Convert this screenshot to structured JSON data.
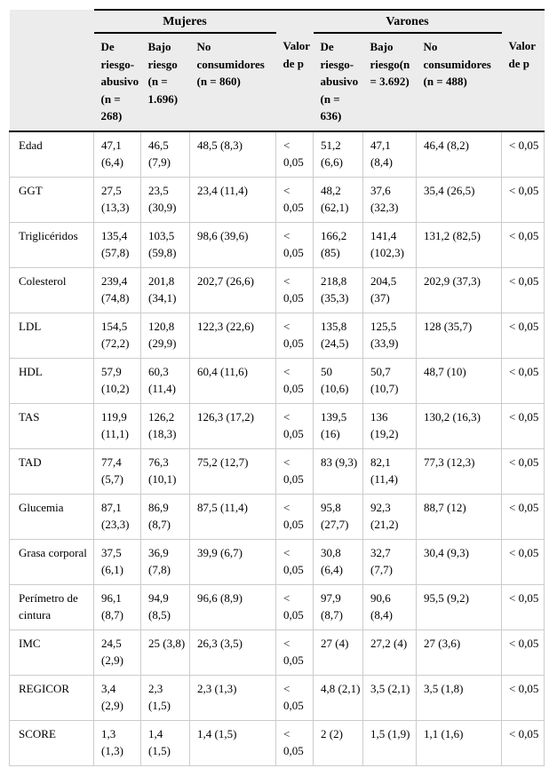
{
  "colors": {
    "header_bg": "#ececec",
    "grid_line": "#cccccc",
    "rule_line": "#000000",
    "text": "#000000"
  },
  "chart_data": {
    "type": "table",
    "group_headers": [
      {
        "label": "Mujeres",
        "span": 3
      },
      {
        "label": "Varones",
        "span": 3
      }
    ],
    "columns": [
      "",
      "De riesgo-abusivo (n = 268)",
      "Bajo riesgo (n = 1.696)",
      "No consumidores (n = 860)",
      "Valor de p",
      "De riesgo-abusivo (n = 636)",
      "Bajo riesgo(n = 3.692)",
      "No consumidores (n = 488)",
      "Valor de p"
    ],
    "rows": [
      {
        "label": "Edad",
        "cells": [
          "47,1 (6,4)",
          "46,5 (7,9)",
          "48,5 (8,3)",
          "< 0,05",
          "51,2 (6,6)",
          "47,1 (8,4)",
          "46,4 (8,2)",
          "< 0,05"
        ]
      },
      {
        "label": "GGT",
        "cells": [
          "27,5 (13,3)",
          "23,5 (30,9)",
          "23,4 (11,4)",
          "< 0,05",
          "48,2 (62,1)",
          "37,6 (32,3)",
          "35,4 (26,5)",
          "< 0,05"
        ]
      },
      {
        "label": "Triglicéridos",
        "cells": [
          "135,4 (57,8)",
          "103,5 (59,8)",
          "98,6 (39,6)",
          "< 0,05",
          "166,2 (85)",
          "141,4 (102,3)",
          "131,2 (82,5)",
          "< 0,05"
        ]
      },
      {
        "label": "Colesterol",
        "cells": [
          "239,4 (74,8)",
          "201,8 (34,1)",
          "202,7 (26,6)",
          "< 0,05",
          "218,8 (35,3)",
          "204,5 (37)",
          "202,9 (37,3)",
          "< 0,05"
        ]
      },
      {
        "label": "LDL",
        "cells": [
          "154,5 (72,2)",
          "120,8 (29,9)",
          "122,3 (22,6)",
          "< 0,05",
          "135,8 (24,5)",
          "125,5 (33,9)",
          "128 (35,7)",
          "< 0,05"
        ]
      },
      {
        "label": "HDL",
        "cells": [
          "57,9 (10,2)",
          "60,3 (11,4)",
          "60,4 (11,6)",
          "< 0,05",
          "50 (10,6)",
          "50,7 (10,7)",
          "48,7 (10)",
          "< 0,05"
        ]
      },
      {
        "label": "TAS",
        "cells": [
          "119,9 (11,1)",
          "126,2 (18,3)",
          "126,3 (17,2)",
          "< 0,05",
          "139,5 (16)",
          "136 (19,2)",
          "130,2 (16,3)",
          "< 0,05"
        ]
      },
      {
        "label": "TAD",
        "cells": [
          "77,4 (5,7)",
          "76,3 (10,1)",
          "75,2 (12,7)",
          "< 0,05",
          "83 (9,3)",
          "82,1 (11,4)",
          "77,3 (12,3)",
          "< 0,05"
        ]
      },
      {
        "label": "Glucemia",
        "cells": [
          "87,1 (23,3)",
          "86,9 (8,7)",
          "87,5 (11,4)",
          "< 0,05",
          "95,8 (27,7)",
          "92,3 (21,2)",
          "88,7 (12)",
          "< 0,05"
        ]
      },
      {
        "label": "Grasa corporal",
        "cells": [
          "37,5 (6,1)",
          "36,9 (7,8)",
          "39,9 (6,7)",
          "< 0,05",
          "30,8 (6,4)",
          "32,7 (7,7)",
          "30,4 (9,3)",
          "< 0,05"
        ]
      },
      {
        "label": "Perímetro de cintura",
        "cells": [
          "96,1 (8,7)",
          "94,9 (8,5)",
          "96,6 (8,9)",
          "< 0,05",
          "97,9 (8,7)",
          "90,6 (8,4)",
          "95,5 (9,2)",
          "< 0,05"
        ]
      },
      {
        "label": "IMC",
        "cells": [
          "24,5 (2,9)",
          "25 (3,8)",
          "26,3 (3,5)",
          "< 0,05",
          "27 (4)",
          "27,2 (4)",
          "27 (3,6)",
          "< 0,05"
        ]
      },
      {
        "label": "REGICOR",
        "cells": [
          "3,4 (2,9)",
          "2,3 (1,5)",
          "2,3 (1,3)",
          "< 0,05",
          "4,8 (2,1)",
          "3,5 (2,1)",
          "3,5 (1,8)",
          "< 0,05"
        ]
      },
      {
        "label": "SCORE",
        "cells": [
          "1,3 (1,3)",
          "1,4 (1,5)",
          "1,4 (1,5)",
          "< 0,05",
          "2 (2)",
          "1,5 (1,9)",
          "1,1 (1,6)",
          "< 0,05"
        ]
      }
    ]
  }
}
